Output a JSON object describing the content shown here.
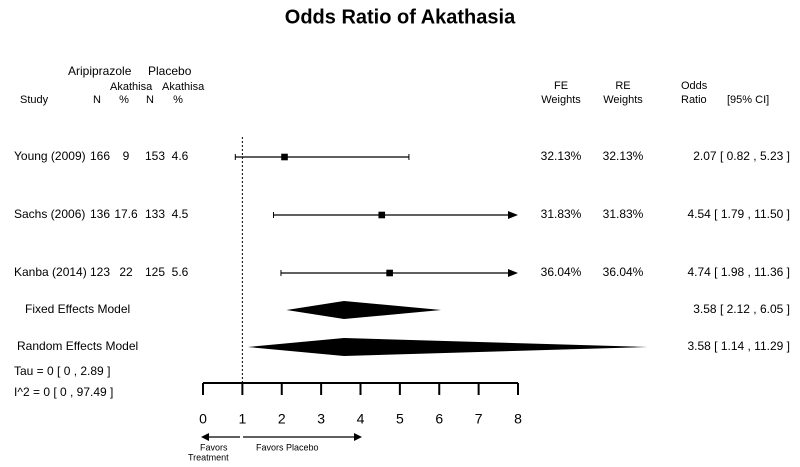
{
  "chart_data": {
    "type": "forest",
    "title": "Odds Ratio of Akathasia",
    "headers": {
      "study": "Study",
      "aripiprazole": "Aripiprazole",
      "placebo": "Placebo",
      "n": "N",
      "akathisia": "Akathisa",
      "pct": "%",
      "fe_weights": [
        "FE",
        "Weights"
      ],
      "re_weights": [
        "RE",
        "Weights"
      ],
      "odds_ratio": [
        "Odds",
        "Ratio"
      ],
      "ci": "[95% CI]"
    },
    "studies": [
      {
        "name": "Young (2009)",
        "aripiprazole_n": 166,
        "aripiprazole_pct": 9,
        "placebo_n": 153,
        "placebo_pct": 4.6,
        "fe_weight": {
          "value": 32.13,
          "label": "32.13%"
        },
        "re_weight": {
          "value": 32.13,
          "label": "32.13%"
        },
        "estimate": 2.07,
        "lower": 0.82,
        "upper": 5.23,
        "label": "2.07 [ 0.82 , 5.23 ]"
      },
      {
        "name": "Sachs (2006)",
        "aripiprazole_n": 136,
        "aripiprazole_pct": 17.6,
        "placebo_n": 133,
        "placebo_pct": 4.5,
        "fe_weight": {
          "value": 31.83,
          "label": "31.83%"
        },
        "re_weight": {
          "value": 31.83,
          "label": "31.83%"
        },
        "estimate": 4.54,
        "lower": 1.79,
        "upper": 11.5,
        "label": "4.54 [ 1.79 , 11.50 ]"
      },
      {
        "name": "Kanba (2014)",
        "aripiprazole_n": 123,
        "aripiprazole_pct": 22,
        "placebo_n": 125,
        "placebo_pct": 5.6,
        "fe_weight": {
          "value": 36.04,
          "label": "36.04%"
        },
        "re_weight": {
          "value": 36.04,
          "label": "36.04%"
        },
        "estimate": 4.74,
        "lower": 1.98,
        "upper": 11.36,
        "label": "4.74 [ 1.98 , 11.36 ]"
      }
    ],
    "models": [
      {
        "name": "Fixed Effects Model",
        "estimate": 3.58,
        "lower": 2.12,
        "upper": 6.05,
        "label": "3.58 [ 2.12 , 6.05 ]"
      },
      {
        "name": "Random Effects Model",
        "estimate": 3.58,
        "lower": 1.14,
        "upper": 11.29,
        "label": "3.58 [ 1.14 , 11.29 ]"
      }
    ],
    "heterogeneity": [
      "Tau = 0 [ 0 , 2.89 ]",
      "I^2 = 0 [ 0 , 97.49 ]"
    ],
    "reference_line": 1,
    "xlim": [
      0,
      8
    ],
    "xticks": [
      0,
      1,
      2,
      3,
      4,
      5,
      6,
      7,
      8
    ],
    "favors_left": [
      "Favors",
      "Treatment"
    ],
    "favors_right": "Favors Placebo",
    "color": "#000000"
  }
}
